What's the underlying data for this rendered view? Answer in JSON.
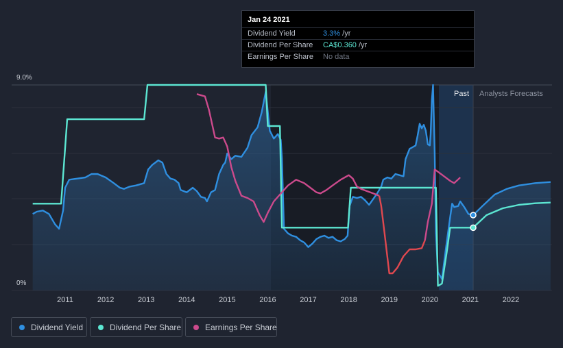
{
  "tooltip": {
    "date": "Jan 24 2021",
    "rows": [
      {
        "label": "Dividend Yield",
        "value": "3.3%",
        "unit": "/yr"
      },
      {
        "label": "Dividend Per Share",
        "value": "CA$0.360",
        "unit": "/yr"
      },
      {
        "label": "Earnings Per Share",
        "value": "No data",
        "unit": ""
      }
    ]
  },
  "regions": {
    "past_label": "Past",
    "forecast_label": "Analysts Forecasts"
  },
  "legend": [
    {
      "label": "Dividend Yield",
      "color": "#2f8fe0"
    },
    {
      "label": "Dividend Per Share",
      "color": "#5ce6d2"
    },
    {
      "label": "Earnings Per Share",
      "color": "#cc4a8c"
    }
  ],
  "chart_data": {
    "type": "line",
    "x_range": [
      2010.2,
      2022.98
    ],
    "y_range": [
      0,
      9.0
    ],
    "y_ticks": [
      {
        "value": 9.0,
        "label": "9.0%"
      },
      {
        "value": 0,
        "label": "0%"
      }
    ],
    "x_ticks": [
      "2011",
      "2012",
      "2013",
      "2014",
      "2015",
      "2016",
      "2017",
      "2018",
      "2019",
      "2020",
      "2021",
      "2022"
    ],
    "past_start": 2020.2,
    "past_end": 2021.07,
    "series": [
      {
        "name": "Dividend Yield",
        "color": "#2f8fe0",
        "filled": true,
        "points": [
          [
            2010.2,
            3.35
          ],
          [
            2010.3,
            3.45
          ],
          [
            2010.45,
            3.5
          ],
          [
            2010.6,
            3.35
          ],
          [
            2010.75,
            2.9
          ],
          [
            2010.85,
            2.7
          ],
          [
            2010.95,
            3.5
          ],
          [
            2011.0,
            4.5
          ],
          [
            2011.1,
            4.85
          ],
          [
            2011.3,
            4.9
          ],
          [
            2011.5,
            4.95
          ],
          [
            2011.65,
            5.1
          ],
          [
            2011.8,
            5.1
          ],
          [
            2012.0,
            4.95
          ],
          [
            2012.2,
            4.7
          ],
          [
            2012.35,
            4.5
          ],
          [
            2012.45,
            4.45
          ],
          [
            2012.6,
            4.55
          ],
          [
            2012.75,
            4.6
          ],
          [
            2012.95,
            4.7
          ],
          [
            2013.05,
            5.3
          ],
          [
            2013.15,
            5.5
          ],
          [
            2013.3,
            5.7
          ],
          [
            2013.4,
            5.6
          ],
          [
            2013.5,
            5.1
          ],
          [
            2013.6,
            4.9
          ],
          [
            2013.7,
            4.85
          ],
          [
            2013.8,
            4.7
          ],
          [
            2013.85,
            4.4
          ],
          [
            2014.0,
            4.3
          ],
          [
            2014.15,
            4.5
          ],
          [
            2014.25,
            4.35
          ],
          [
            2014.35,
            4.1
          ],
          [
            2014.45,
            4.05
          ],
          [
            2014.5,
            3.9
          ],
          [
            2014.6,
            4.3
          ],
          [
            2014.7,
            4.4
          ],
          [
            2014.8,
            5.1
          ],
          [
            2014.9,
            5.5
          ],
          [
            2014.95,
            5.6
          ],
          [
            2015.0,
            6.0
          ],
          [
            2015.1,
            5.75
          ],
          [
            2015.2,
            5.9
          ],
          [
            2015.35,
            5.85
          ],
          [
            2015.5,
            6.25
          ],
          [
            2015.6,
            6.8
          ],
          [
            2015.75,
            7.15
          ],
          [
            2015.85,
            7.8
          ],
          [
            2015.95,
            8.7
          ],
          [
            2016.05,
            7.0
          ],
          [
            2016.15,
            6.65
          ],
          [
            2016.25,
            6.85
          ],
          [
            2016.32,
            6.6
          ],
          [
            2016.35,
            5.8
          ],
          [
            2016.4,
            2.7
          ],
          [
            2016.5,
            2.5
          ],
          [
            2016.6,
            2.4
          ],
          [
            2016.7,
            2.35
          ],
          [
            2016.8,
            2.2
          ],
          [
            2016.9,
            2.1
          ],
          [
            2017.0,
            1.9
          ],
          [
            2017.1,
            2.05
          ],
          [
            2017.2,
            2.25
          ],
          [
            2017.3,
            2.35
          ],
          [
            2017.4,
            2.4
          ],
          [
            2017.5,
            2.3
          ],
          [
            2017.6,
            2.35
          ],
          [
            2017.7,
            2.2
          ],
          [
            2017.8,
            2.15
          ],
          [
            2017.9,
            2.25
          ],
          [
            2017.97,
            2.4
          ],
          [
            2018.02,
            3.7
          ],
          [
            2018.1,
            4.1
          ],
          [
            2018.2,
            4.05
          ],
          [
            2018.3,
            4.1
          ],
          [
            2018.4,
            3.95
          ],
          [
            2018.5,
            3.75
          ],
          [
            2018.6,
            4.0
          ],
          [
            2018.7,
            4.25
          ],
          [
            2018.8,
            4.55
          ],
          [
            2018.85,
            4.85
          ],
          [
            2018.95,
            4.95
          ],
          [
            2019.05,
            4.9
          ],
          [
            2019.15,
            5.1
          ],
          [
            2019.25,
            5.05
          ],
          [
            2019.35,
            5.0
          ],
          [
            2019.4,
            5.75
          ],
          [
            2019.5,
            6.2
          ],
          [
            2019.6,
            6.3
          ],
          [
            2019.65,
            6.35
          ],
          [
            2019.7,
            6.8
          ],
          [
            2019.75,
            7.3
          ],
          [
            2019.8,
            7.1
          ],
          [
            2019.85,
            7.25
          ],
          [
            2019.9,
            7.0
          ],
          [
            2019.95,
            6.4
          ],
          [
            2020.0,
            6.35
          ],
          [
            2020.02,
            6.85
          ],
          [
            2020.05,
            8.35
          ],
          [
            2020.08,
            9.0
          ],
          [
            2020.12,
            6.0
          ],
          [
            2020.15,
            2.5
          ],
          [
            2020.2,
            0.8
          ],
          [
            2020.3,
            0.5
          ],
          [
            2020.4,
            1.9
          ],
          [
            2020.5,
            3.2
          ],
          [
            2020.55,
            3.8
          ],
          [
            2020.6,
            3.65
          ],
          [
            2020.7,
            3.7
          ],
          [
            2020.75,
            3.9
          ],
          [
            2020.85,
            3.65
          ],
          [
            2020.95,
            3.35
          ],
          [
            2021.07,
            3.3
          ],
          [
            2021.3,
            3.7
          ],
          [
            2021.6,
            4.2
          ],
          [
            2021.9,
            4.45
          ],
          [
            2022.2,
            4.6
          ],
          [
            2022.6,
            4.7
          ],
          [
            2022.98,
            4.75
          ]
        ]
      },
      {
        "name": "Dividend Per Share",
        "color": "#5ce6d2",
        "filled": false,
        "points": [
          [
            2010.2,
            3.8
          ],
          [
            2010.9,
            3.8
          ],
          [
            2011.05,
            7.5
          ],
          [
            2012.95,
            7.5
          ],
          [
            2013.03,
            9.0
          ],
          [
            2015.95,
            9.0
          ],
          [
            2016.0,
            7.2
          ],
          [
            2016.3,
            7.2
          ],
          [
            2016.35,
            2.75
          ],
          [
            2017.98,
            2.75
          ],
          [
            2018.05,
            4.5
          ],
          [
            2020.15,
            4.5
          ],
          [
            2020.2,
            0.2
          ],
          [
            2020.3,
            0.3
          ],
          [
            2020.42,
            1.7
          ],
          [
            2020.5,
            2.75
          ],
          [
            2021.07,
            2.75
          ],
          [
            2021.4,
            3.3
          ],
          [
            2021.8,
            3.6
          ],
          [
            2022.2,
            3.75
          ],
          [
            2022.6,
            3.82
          ],
          [
            2022.98,
            3.85
          ]
        ]
      },
      {
        "name": "Earnings Per Share",
        "color": "#cc4a8c",
        "filled": false,
        "points": [
          [
            2014.25,
            8.6
          ],
          [
            2014.45,
            8.5
          ],
          [
            2014.55,
            7.9
          ],
          [
            2014.7,
            6.7
          ],
          [
            2014.8,
            6.65
          ],
          [
            2014.9,
            6.7
          ],
          [
            2015.0,
            6.3
          ],
          [
            2015.1,
            5.4
          ],
          [
            2015.2,
            4.8
          ],
          [
            2015.35,
            4.15
          ],
          [
            2015.5,
            4.05
          ],
          [
            2015.65,
            3.9
          ],
          [
            2015.8,
            3.3
          ],
          [
            2015.9,
            3.0
          ],
          [
            2016.0,
            3.4
          ],
          [
            2016.15,
            3.9
          ],
          [
            2016.3,
            4.2
          ],
          [
            2016.5,
            4.6
          ],
          [
            2016.7,
            4.85
          ],
          [
            2016.9,
            4.7
          ],
          [
            2017.05,
            4.5
          ],
          [
            2017.2,
            4.3
          ],
          [
            2017.3,
            4.25
          ],
          [
            2017.45,
            4.4
          ],
          [
            2017.6,
            4.6
          ],
          [
            2017.8,
            4.85
          ],
          [
            2018.0,
            5.05
          ],
          [
            2018.1,
            4.9
          ],
          [
            2018.2,
            4.55
          ],
          [
            2018.3,
            4.45
          ],
          [
            2018.45,
            4.35
          ],
          [
            2018.6,
            4.25
          ],
          [
            2018.75,
            4.15
          ],
          [
            2018.8,
            3.7
          ],
          [
            2018.88,
            2.55
          ],
          [
            2019.0,
            0.75
          ],
          [
            2019.08,
            0.75
          ],
          [
            2019.2,
            1.0
          ],
          [
            2019.35,
            1.5
          ],
          [
            2019.5,
            1.8
          ],
          [
            2019.65,
            1.8
          ],
          [
            2019.8,
            1.85
          ],
          [
            2019.88,
            2.2
          ],
          [
            2019.95,
            3.0
          ],
          [
            2020.05,
            3.8
          ],
          [
            2020.12,
            5.3
          ],
          [
            2020.2,
            5.2
          ],
          [
            2020.35,
            5.0
          ],
          [
            2020.5,
            4.8
          ],
          [
            2020.6,
            4.7
          ],
          [
            2020.72,
            4.9
          ],
          [
            2020.75,
            4.95
          ]
        ]
      }
    ],
    "markers": [
      {
        "series": "Dividend Yield",
        "x": 2021.07,
        "y": 3.3
      },
      {
        "series": "Dividend Per Share",
        "x": 2021.07,
        "y": 2.75
      }
    ]
  }
}
